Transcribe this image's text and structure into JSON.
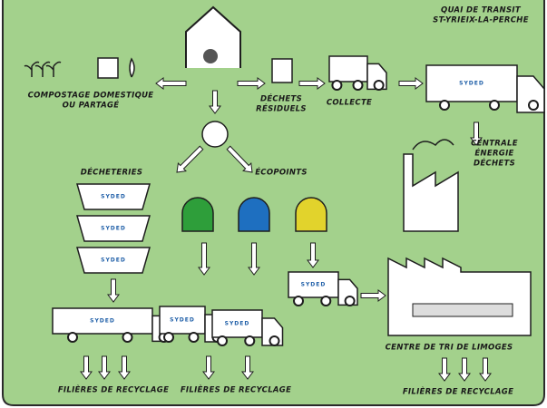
{
  "logo": "SYDED",
  "nodes": [
    {
      "label": [
        "COMPOSTAGE DOMESTIQUE",
        "OU PARTAGÉ"
      ]
    },
    {
      "label": [
        "DÉCHETS",
        "RÉSIDUELS"
      ]
    },
    {
      "label": [
        "COLLECTE"
      ]
    },
    {
      "label": [
        "QUAI DE TRANSIT",
        "ST-YRIEIX-LA-PERCHE"
      ]
    },
    {
      "label": [
        "CENTRALE",
        "ÉNERGIE",
        "DÉCHETS"
      ]
    },
    {
      "label": [
        "DÉCHETERIES"
      ]
    },
    {
      "label": [
        "ÉCOPOINTS"
      ]
    },
    {
      "label": [
        "CENTRE DE TRI DE LIMOGES"
      ]
    },
    {
      "label": [
        "FILIÈRES DE RECYCLAGE"
      ]
    },
    {
      "label": [
        "FILIÈRES DE RECYCLAGE"
      ]
    },
    {
      "label": [
        "FILIÈRES DE RECYCLAGE"
      ]
    }
  ]
}
